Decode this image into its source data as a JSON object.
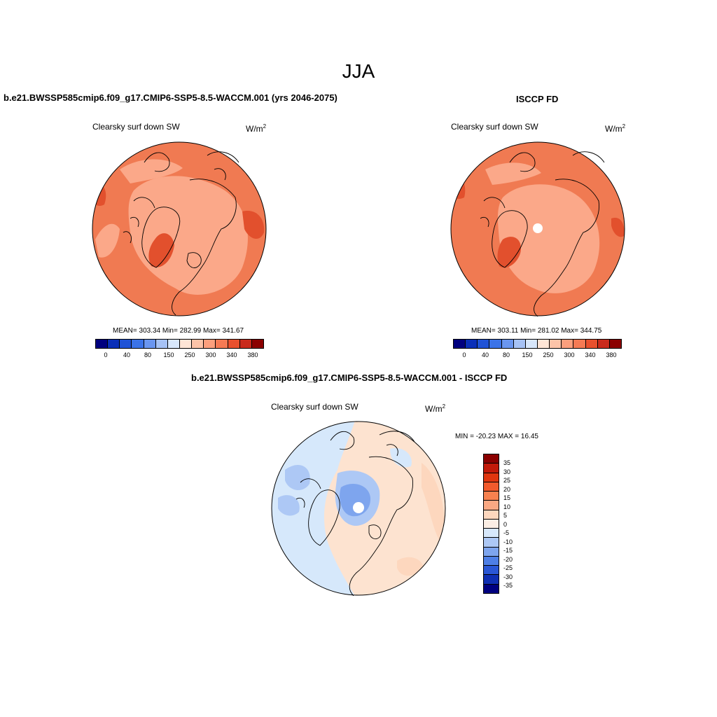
{
  "season": "JJA",
  "panels": [
    {
      "title": "b.e21.BWSSP585cmip6.f09_g17.CMIP6-SSP5-8.5-WACCM.001 (yrs 2046-2075)",
      "variable": "Clearsky surf down SW",
      "units_base": "W/m",
      "units_exp": "2",
      "stats": "MEAN= 303.34  Min= 282.99  Max= 341.67",
      "colorbar_labels": [
        "0",
        "40",
        "80",
        "150",
        "250",
        "300",
        "340",
        "380"
      ]
    },
    {
      "title": "ISCCP FD",
      "variable": "Clearsky surf down SW",
      "units_base": "W/m",
      "units_exp": "2",
      "stats": "MEAN= 303.11  Min= 281.02  Max= 344.75",
      "colorbar_labels": [
        "0",
        "40",
        "80",
        "150",
        "250",
        "300",
        "340",
        "380"
      ]
    }
  ],
  "diff_panel": {
    "title": "b.e21.BWSSP585cmip6.f09_g17.CMIP6-SSP5-8.5-WACCM.001 - ISCCP FD",
    "variable": "Clearsky surf down SW",
    "units_base": "W/m",
    "units_exp": "2",
    "minmax": "MIN = -20.23 MAX =  16.45",
    "colorbar_labels": [
      "35",
      "30",
      "25",
      "20",
      "15",
      "10",
      "5",
      "0",
      "-5",
      "-10",
      "-15",
      "-20",
      "-25",
      "-30",
      "-35"
    ]
  },
  "colors": {
    "abs_scale": [
      "#00007f",
      "#0a2fb8",
      "#1f52d6",
      "#3b73e8",
      "#6a96f0",
      "#a6c2f5",
      "#d8e7fb",
      "#fee5d6",
      "#fcc3a8",
      "#fc9f7d",
      "#f57a54",
      "#e8502e",
      "#c92a1c",
      "#8b0000"
    ],
    "diff_scale": [
      "#8b0000",
      "#c21a0a",
      "#e0360f",
      "#f25a2c",
      "#f7814f",
      "#faa883",
      "#fdd7be",
      "#fbeee4",
      "#d7e8fb",
      "#adc8f5",
      "#7ea5ee",
      "#4e7fe6",
      "#2a57d6",
      "#0f2fb3",
      "#000080"
    ],
    "map_base_abs": "#f07a52",
    "map_light_abs": "#fba889",
    "map_dark_abs": "#e2502d",
    "diff_base": "#fde3d0",
    "diff_blue": "#d6e8fb"
  }
}
